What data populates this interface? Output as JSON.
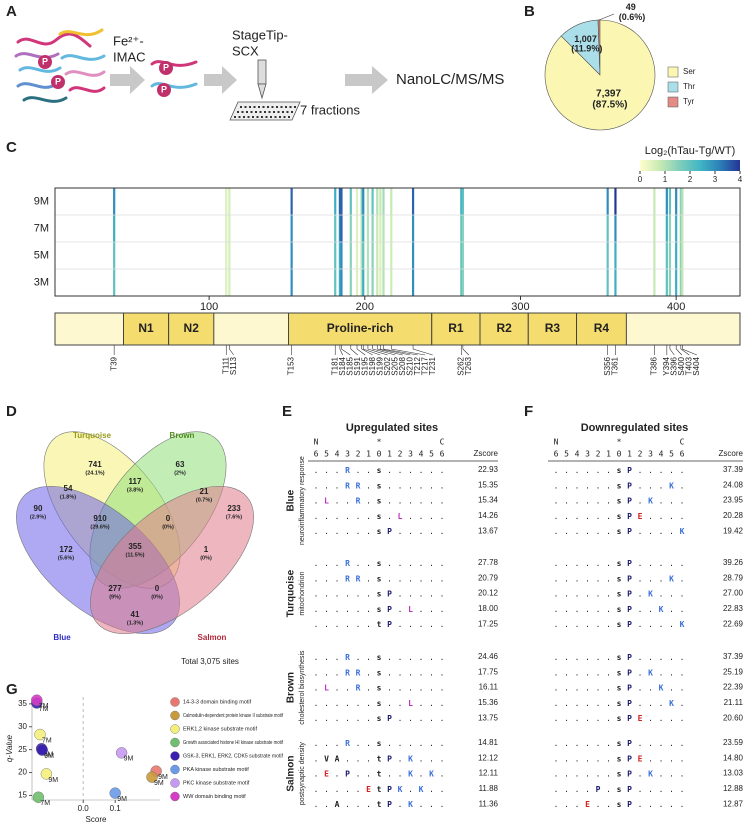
{
  "panel_labels": [
    "A",
    "B",
    "C",
    "D",
    "E",
    "F",
    "G"
  ],
  "workflow": {
    "imac": [
      "Fe²⁺-",
      "IMAC"
    ],
    "scx": [
      "StageTip-",
      "SCX"
    ],
    "fractions": "7 fractions",
    "ms": "NanoLC/MS/MS",
    "phospho_mark": "P"
  },
  "chart_data": [
    {
      "type": "pie",
      "categories": [
        "Ser",
        "Thr",
        "Tyr"
      ],
      "values": [
        7397,
        1007,
        49
      ],
      "value_labels": [
        "7,397 (87.5%)",
        "1,007 (11.9%)",
        "49 (0.6%)"
      ],
      "colors": [
        "#fbf7b3",
        "#aadfe9",
        "#e38b84"
      ],
      "legend": "right"
    },
    {
      "type": "heatmap",
      "colorbar_title": "Log₂(hTau-Tg/WT)",
      "rows": [
        "3M",
        "5M",
        "7M",
        "9M"
      ],
      "x": [
        39,
        111,
        113,
        153,
        181,
        184,
        185,
        191,
        195,
        198,
        199,
        202,
        205,
        208,
        210,
        212,
        217,
        231,
        262,
        263,
        356,
        361,
        386,
        394,
        396,
        400,
        403,
        404
      ],
      "site_labels": [
        "T39",
        "T111",
        "S113",
        "T153",
        "T181",
        "S184",
        "S185",
        "S191",
        "S195",
        "S198",
        "S199",
        "S202",
        "S205",
        "S208",
        "S210",
        "T212",
        "T217",
        "T231",
        "S262",
        "T263",
        "S356",
        "T361",
        "T386",
        "Y394",
        "S396",
        "S400",
        "T403",
        "S404"
      ],
      "values": [
        [
          2,
          0.5,
          0.6,
          3,
          2,
          2.5,
          3,
          1.5,
          0.5,
          1,
          2.5,
          1,
          1.5,
          0.8,
          0.5,
          1,
          0.7,
          3,
          2,
          1.5,
          2,
          2.5,
          0.8,
          2,
          1.5,
          2.5,
          1.5,
          0.8
        ],
        [
          2,
          0.5,
          0.6,
          3,
          2,
          2.5,
          3,
          1.5,
          0.5,
          1,
          2,
          1,
          1.5,
          0.8,
          0.5,
          1,
          0.7,
          3,
          2,
          1.5,
          2,
          2.5,
          0.8,
          2,
          1.5,
          2.5,
          1.5,
          0.8
        ],
        [
          2.5,
          0.5,
          0.6,
          3,
          2,
          3,
          3.5,
          1.5,
          0.5,
          1,
          2.5,
          1,
          1.5,
          0.8,
          0.6,
          1,
          0.7,
          3,
          2,
          1.5,
          2,
          3,
          0.8,
          2.5,
          1.5,
          2.5,
          1.5,
          0.8
        ],
        [
          3,
          0.5,
          0.6,
          3.5,
          2.5,
          3.5,
          3.5,
          2,
          0.5,
          1.5,
          3,
          1,
          2,
          1,
          0.8,
          1.2,
          0.8,
          3.5,
          2.5,
          2,
          3,
          4,
          0.8,
          3,
          2,
          3,
          1.5,
          1
        ]
      ],
      "xlim": [
        1,
        441
      ],
      "xticks": [
        100,
        200,
        300,
        400
      ],
      "clim": [
        0,
        4
      ],
      "cticks": [
        0,
        1,
        2,
        3,
        4
      ],
      "colors": [
        "#ffffcc",
        "#c7e9b4",
        "#7fcdbb",
        "#41b6c4",
        "#2c7fb8",
        "#253494"
      ],
      "domains": [
        {
          "name": "N1",
          "start": 45,
          "end": 74
        },
        {
          "name": "N2",
          "start": 74,
          "end": 103
        },
        {
          "name": "Proline-rich",
          "start": 151,
          "end": 243
        },
        {
          "name": "R1",
          "start": 243,
          "end": 274
        },
        {
          "name": "R2",
          "start": 274,
          "end": 305
        },
        {
          "name": "R3",
          "start": 305,
          "end": 336
        },
        {
          "name": "R4",
          "start": 336,
          "end": 368
        }
      ]
    },
    {
      "type": "venn",
      "sets": [
        {
          "name": "Turquoise",
          "color": "#f6f07a",
          "label_color": "#9a9a1e"
        },
        {
          "name": "Brown",
          "color": "#8fe07a",
          "label_color": "#4f8a1e"
        },
        {
          "name": "Blue",
          "color": "#6c62e8",
          "label_color": "#2d2dbf"
        },
        {
          "name": "Salmon",
          "color": "#e07c8c",
          "label_color": "#b0283a"
        }
      ],
      "regions": [
        {
          "count": 741,
          "share": "(24.1%)"
        },
        {
          "count": 63,
          "share": "(2%)"
        },
        {
          "count": 90,
          "share": "(2.9%)"
        },
        {
          "count": 233,
          "share": "(7.6%)"
        },
        {
          "count": 54,
          "share": "(1.8%)"
        },
        {
          "count": 117,
          "share": "(3.8%)"
        },
        {
          "count": 21,
          "share": "(0.7%)"
        },
        {
          "count": 910,
          "share": "(29.6%)"
        },
        {
          "count": 0,
          "share": "(0%)"
        },
        {
          "count": 172,
          "share": "(5.6%)"
        },
        {
          "count": 355,
          "share": "(11.5%)"
        },
        {
          "count": 1,
          "share": "(0%)"
        },
        {
          "count": 277,
          "share": "(9%)"
        },
        {
          "count": 0,
          "share": "(0%)"
        },
        {
          "count": 41,
          "share": "(1.3%)"
        }
      ],
      "total_label": "Total 3,075 sites"
    },
    {
      "type": "scatter",
      "xlabel": "Score",
      "ylabel": "q-Value",
      "xlim": [
        -0.16,
        0.24
      ],
      "xticks": [
        {
          "value": 0,
          "label": "0.0"
        },
        0.1
      ],
      "ylim": [
        14,
        36.5
      ],
      "yticks": [
        15,
        20,
        25,
        30,
        35
      ],
      "zero_line": true,
      "series": [
        {
          "name": "14-3-3 domain binding motif",
          "color": "#e8776f",
          "x": [
            0.228
          ],
          "values": [
            20.3
          ],
          "point_labels": [
            "9M"
          ]
        },
        {
          "name": "Calmodulin-dependent protein kinase II substrate motif",
          "color": "#c99a3a",
          "x": [
            0.215
          ],
          "values": [
            19.0
          ],
          "point_labels": [
            "9M"
          ]
        },
        {
          "name": "ERK1,2 kinase substrate motif",
          "color": "#f4ee7a",
          "x": [
            -0.135,
            -0.115
          ],
          "values": [
            28.3,
            19.7
          ],
          "point_labels": [
            "7M",
            "9M"
          ]
        },
        {
          "name": "Growth associated histone HI kinase substrate motif",
          "color": "#6fbf6f",
          "x": [
            -0.14
          ],
          "values": [
            14.6
          ],
          "point_labels": [
            "7M"
          ]
        },
        {
          "name": "GSK-3, ERK1, ERK2, CDK5 substrate motif",
          "color": "#3a1fb0",
          "x": [
            -0.145,
            -0.13,
            -0.128
          ],
          "values": [
            35.2,
            25.2,
            24.9
          ],
          "point_labels": [
            "7M",
            "9M",
            "9M"
          ]
        },
        {
          "name": "PKA kinase substrate motif",
          "color": "#6a9ae8",
          "x": [
            0.1
          ],
          "values": [
            15.5
          ],
          "point_labels": [
            "9M"
          ]
        },
        {
          "name": "PKC kinase substrate motif",
          "color": "#c69af2",
          "x": [
            0.12
          ],
          "values": [
            24.3
          ],
          "point_labels": [
            "9M"
          ]
        },
        {
          "name": "WW domain binding motif",
          "color": "#d63cc6",
          "x": [
            -0.145
          ],
          "values": [
            35.8
          ],
          "point_labels": [
            "7M"
          ]
        }
      ]
    }
  ],
  "motif_tables": [
    {
      "title": "Upregulated sites",
      "header": {
        "n": "N",
        "star": "*",
        "c": "C",
        "positions": [
          6,
          5,
          4,
          3,
          2,
          1,
          0,
          1,
          2,
          3,
          4,
          5,
          6
        ],
        "zscore": "Zscore"
      },
      "groups": [
        {
          "name": "Blue",
          "term": "neuroinflammatory response",
          "rows": [
            {
              "motif": "...R..s......",
              "zscore": "22.93"
            },
            {
              "motif": "...RR.s......",
              "zscore": "15.35"
            },
            {
              "motif": ".L..R.s......",
              "zscore": "15.34"
            },
            {
              "motif": "......s.L....",
              "zscore": "14.26"
            },
            {
              "motif": "......sP.....",
              "zscore": "13.67"
            }
          ]
        },
        {
          "name": "Turquoise",
          "term": "mitochondrion",
          "rows": [
            {
              "motif": "...R..s......",
              "zscore": "27.78"
            },
            {
              "motif": "...RR.s......",
              "zscore": "20.79"
            },
            {
              "motif": "......sP.....",
              "zscore": "20.12"
            },
            {
              "motif": "......sP.L...",
              "zscore": "18.00"
            },
            {
              "motif": "......tP.....",
              "zscore": "17.25"
            }
          ]
        },
        {
          "name": "Brown",
          "term": "cholesterol biosynthesis",
          "rows": [
            {
              "motif": "...R..s......",
              "zscore": "24.46"
            },
            {
              "motif": "...RR.s......",
              "zscore": "17.75"
            },
            {
              "motif": ".L..R.s......",
              "zscore": "16.11"
            },
            {
              "motif": "......s..L...",
              "zscore": "15.36"
            },
            {
              "motif": "......sP.....",
              "zscore": "13.75"
            }
          ]
        },
        {
          "name": "Salmon",
          "term": "postsynaptic density",
          "rows": [
            {
              "motif": "...R..s......",
              "zscore": "14.81"
            },
            {
              "motif": ".VA...tP.K...",
              "zscore": "12.12"
            },
            {
              "motif": ".E.P..t..K.K.",
              "zscore": "12.11"
            },
            {
              "motif": ".....EtPK.K..",
              "zscore": "11.88"
            },
            {
              "motif": "..A...tP.K...",
              "zscore": "11.36"
            }
          ]
        }
      ]
    },
    {
      "title": "Downregulated sites",
      "header": {
        "n": "N",
        "star": "*",
        "c": "C",
        "positions": [
          6,
          5,
          4,
          3,
          2,
          1,
          0,
          1,
          2,
          3,
          4,
          5,
          6
        ],
        "zscore": "Zscore"
      },
      "groups": [
        {
          "rows": [
            {
              "motif": "......sP.....",
              "zscore": "37.39"
            },
            {
              "motif": "......sP...K.",
              "zscore": "24.08"
            },
            {
              "motif": "......sP.K...",
              "zscore": "23.95"
            },
            {
              "motif": "......sPE....",
              "zscore": "20.28"
            },
            {
              "motif": "......sP....K",
              "zscore": "19.42"
            }
          ]
        },
        {
          "rows": [
            {
              "motif": "......sP.....",
              "zscore": "39.26"
            },
            {
              "motif": "......sP...K.",
              "zscore": "28.79"
            },
            {
              "motif": "......sP.K...",
              "zscore": "27.00"
            },
            {
              "motif": "......sP..K..",
              "zscore": "22.83"
            },
            {
              "motif": "......sP....K",
              "zscore": "22.69"
            }
          ]
        },
        {
          "rows": [
            {
              "motif": "......sP.....",
              "zscore": "37.39"
            },
            {
              "motif": "......sP.K...",
              "zscore": "25.19"
            },
            {
              "motif": "......sP..K..",
              "zscore": "22.39"
            },
            {
              "motif": "......sP...K.",
              "zscore": "21.11"
            },
            {
              "motif": "......sPE....",
              "zscore": "20.60"
            }
          ]
        },
        {
          "rows": [
            {
              "motif": "......sP.....",
              "zscore": "23.59"
            },
            {
              "motif": "......sPE....",
              "zscore": "14.80"
            },
            {
              "motif": "......sP.K...",
              "zscore": "13.03"
            },
            {
              "motif": "....P.sP.....",
              "zscore": "12.88"
            },
            {
              "motif": "...E..sP.....",
              "zscore": "12.87"
            }
          ]
        }
      ]
    }
  ]
}
